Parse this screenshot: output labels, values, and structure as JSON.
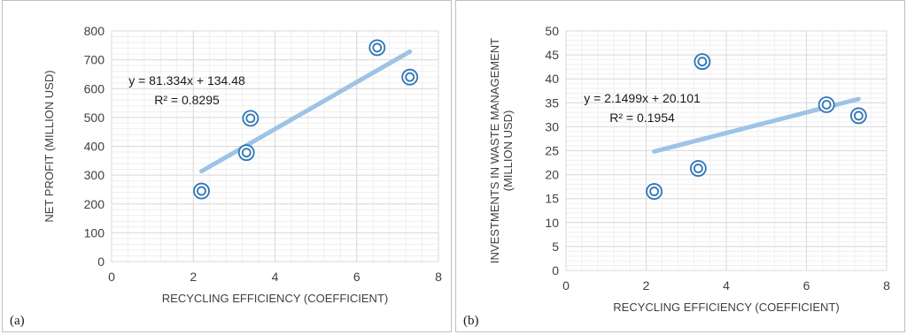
{
  "chart_data": [
    {
      "type": "scatter",
      "panel_label": "(a)",
      "xlabel": "RECYCLING EFFICIENCY (COEFFICIENT)",
      "ylabel": [
        "NET PROFIT (MILLION USD)"
      ],
      "xlim": [
        0,
        8
      ],
      "ylim": [
        0,
        800
      ],
      "x_ticks": [
        0,
        2,
        4,
        6,
        8
      ],
      "y_ticks": [
        0,
        100,
        200,
        300,
        400,
        500,
        600,
        700,
        800
      ],
      "x_tick_labels": [
        "0",
        "2",
        "4",
        "6",
        "8"
      ],
      "y_tick_labels": [
        "0",
        "100",
        "200",
        "300",
        "400",
        "500",
        "600",
        "700",
        "800"
      ],
      "grid": true,
      "points": [
        {
          "x": 2.2,
          "y": 245
        },
        {
          "x": 3.3,
          "y": 378
        },
        {
          "x": 3.4,
          "y": 497
        },
        {
          "x": 6.5,
          "y": 742
        },
        {
          "x": 7.3,
          "y": 640
        }
      ],
      "trendline": {
        "slope": 81.334,
        "intercept": 134.48,
        "x_range": [
          2.2,
          7.3
        ]
      },
      "equation": "y = 81.334x + 134.48",
      "r_squared": "R² = 0.8295",
      "colors": {
        "marker": "#2e75b6",
        "trend": "#9dc3e6",
        "grid": "#d9d9d9"
      }
    },
    {
      "type": "scatter",
      "panel_label": "(b)",
      "xlabel": "RECYCLING EFFICIENCY (COEFFICIENT)",
      "ylabel": [
        "INVESTMENTS IN WASTE MANAGEMENT",
        "(MILLION USD)"
      ],
      "xlim": [
        0,
        8
      ],
      "ylim": [
        0,
        50
      ],
      "x_ticks": [
        0,
        2,
        4,
        6,
        8
      ],
      "y_ticks": [
        0,
        5,
        10,
        15,
        20,
        25,
        30,
        35,
        40,
        45,
        50
      ],
      "x_tick_labels": [
        "0",
        "2",
        "4",
        "6",
        "8"
      ],
      "y_tick_labels": [
        "0",
        "5",
        "10",
        "15",
        "20",
        "25",
        "30",
        "35",
        "40",
        "45",
        "50"
      ],
      "grid": true,
      "points": [
        {
          "x": 2.2,
          "y": 16.5
        },
        {
          "x": 3.3,
          "y": 21.3
        },
        {
          "x": 3.4,
          "y": 43.6
        },
        {
          "x": 6.5,
          "y": 34.6
        },
        {
          "x": 7.3,
          "y": 32.3
        }
      ],
      "trendline": {
        "slope": 2.1499,
        "intercept": 20.101,
        "x_range": [
          2.2,
          7.3
        ]
      },
      "equation": "y = 2.1499x + 20.101",
      "r_squared": "R² = 0.1954",
      "colors": {
        "marker": "#2e75b6",
        "trend": "#9dc3e6",
        "grid": "#d9d9d9"
      }
    }
  ]
}
